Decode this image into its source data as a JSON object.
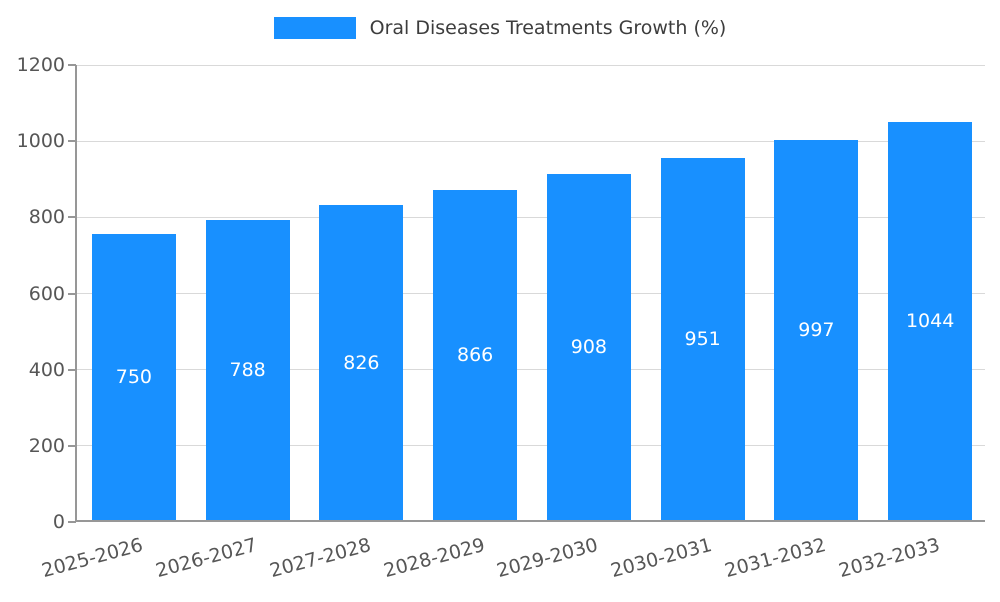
{
  "chart_data": {
    "type": "bar",
    "title": "Oral Diseases Treatments Growth (%)",
    "categories": [
      "2025-2026",
      "2026-2027",
      "2027-2028",
      "2028-2029",
      "2029-2030",
      "2030-2031",
      "2031-2032",
      "2032-2033"
    ],
    "values": [
      750,
      788,
      826,
      866,
      908,
      951,
      997,
      1044
    ],
    "ylim": [
      0,
      1200
    ],
    "yticks": [
      0,
      200,
      400,
      600,
      800,
      1000,
      1200
    ],
    "bar_color": "#1890ff",
    "value_label_color": "#ffffff",
    "grid": true,
    "legend_position": "top"
  }
}
